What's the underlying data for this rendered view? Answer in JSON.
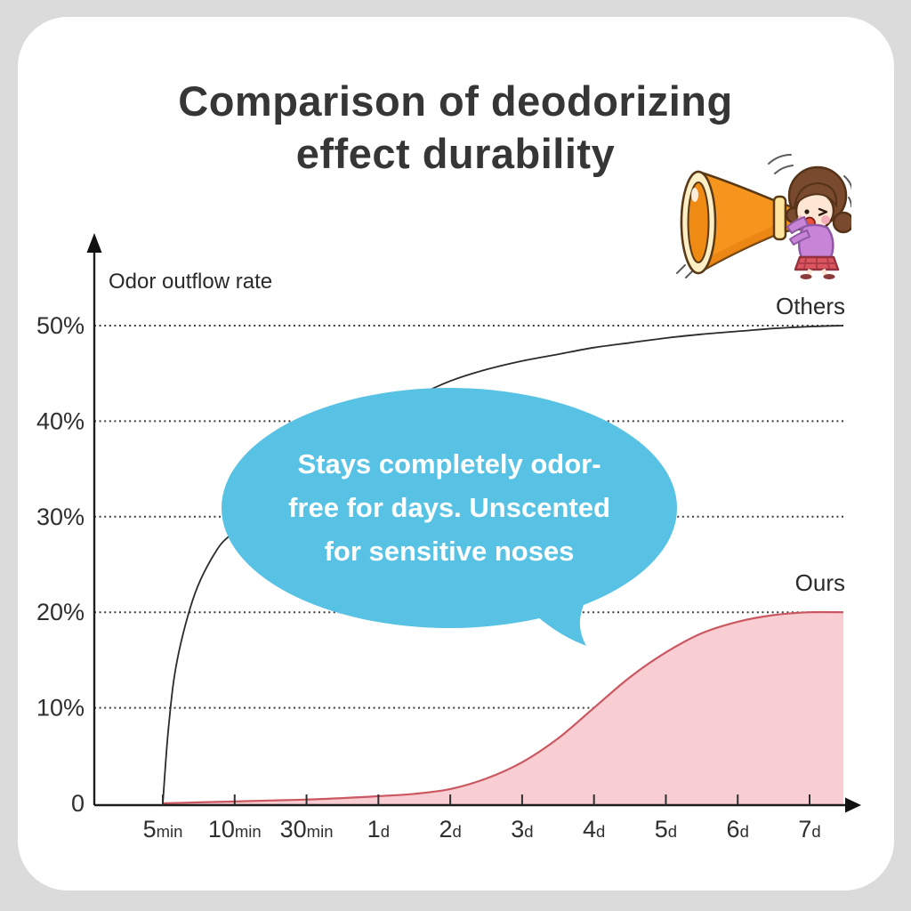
{
  "page": {
    "background_color": "#dbdbdb",
    "card_color": "#ffffff"
  },
  "title": {
    "line1": "Comparison of deodorizing",
    "line2": "effect durability",
    "color": "#363636"
  },
  "chart_data": {
    "type": "area",
    "title": "Comparison of deodorizing effect durability",
    "ylabel": "Odor outflow rate",
    "xlabel": "",
    "ylim": [
      0,
      50
    ],
    "grid": "horizontal-dotted",
    "legend_position": "labels-at-line-ends",
    "categories": [
      "5min",
      "10min",
      "30min",
      "1d",
      "2d",
      "3d",
      "4d",
      "5d",
      "6d",
      "7d"
    ],
    "tick_parts": [
      [
        "5",
        "min"
      ],
      [
        "10",
        "min"
      ],
      [
        "30",
        "min"
      ],
      [
        "1",
        "d"
      ],
      [
        "2",
        "d"
      ],
      [
        "3",
        "d"
      ],
      [
        "4",
        "d"
      ],
      [
        "5",
        "d"
      ],
      [
        "6",
        "d"
      ],
      [
        "7",
        "d"
      ]
    ],
    "y_ticks": [
      {
        "label": "50%",
        "value": 50
      },
      {
        "label": "40%",
        "value": 40
      },
      {
        "label": "30%",
        "value": 30
      },
      {
        "label": "20%",
        "value": 20
      },
      {
        "label": "10%",
        "value": 10
      },
      {
        "label": "0",
        "value": 0
      }
    ],
    "series": [
      {
        "name": "Others",
        "type": "line",
        "color": "#2b2b2b",
        "fill": null,
        "values": [
          0,
          28.5,
          35.5,
          40.5,
          44.2,
          46.3,
          47.7,
          48.7,
          49.4,
          49.9
        ],
        "points": [
          [
            0,
            0
          ],
          [
            0.08,
            8
          ],
          [
            0.2,
            15
          ],
          [
            0.45,
            22
          ],
          [
            0.75,
            26.5
          ],
          [
            1,
            28.5
          ],
          [
            1.5,
            32
          ],
          [
            2,
            35.5
          ],
          [
            2.5,
            38
          ],
          [
            3,
            40.5
          ],
          [
            3.5,
            42.5
          ],
          [
            4,
            44.2
          ],
          [
            4.5,
            45.4
          ],
          [
            5,
            46.3
          ],
          [
            5.5,
            47
          ],
          [
            6,
            47.7
          ],
          [
            6.5,
            48.2
          ],
          [
            7,
            48.7
          ],
          [
            7.5,
            49.1
          ],
          [
            8,
            49.4
          ],
          [
            8.5,
            49.7
          ],
          [
            9,
            49.9
          ],
          [
            9.47,
            50
          ]
        ]
      },
      {
        "name": "Ours",
        "type": "area",
        "color": "#cb5761",
        "fill": "#f8ced3",
        "values": [
          0,
          0.2,
          0.4,
          0.75,
          1.5,
          4.3,
          10,
          15.8,
          19,
          20
        ],
        "points": [
          [
            0,
            0
          ],
          [
            0.5,
            0.1
          ],
          [
            1,
            0.2
          ],
          [
            1.5,
            0.3
          ],
          [
            2,
            0.4
          ],
          [
            2.5,
            0.55
          ],
          [
            3,
            0.75
          ],
          [
            3.5,
            1.0
          ],
          [
            4,
            1.5
          ],
          [
            4.5,
            2.6
          ],
          [
            5,
            4.3
          ],
          [
            5.5,
            6.8
          ],
          [
            6,
            10
          ],
          [
            6.5,
            13.2
          ],
          [
            7,
            15.8
          ],
          [
            7.5,
            17.8
          ],
          [
            8,
            19
          ],
          [
            8.5,
            19.7
          ],
          [
            9,
            20
          ],
          [
            9.47,
            20
          ]
        ]
      }
    ]
  },
  "annotation": {
    "line1": "Stays completely odor-",
    "line2": "free for days. Unscented",
    "line3": "for sensitive noses",
    "bubble_color": "#58c2e5",
    "text_color": "#ffffff"
  },
  "illustration": {
    "description": "girl shouting into orange megaphone",
    "megaphone_color": "#f6951d"
  }
}
